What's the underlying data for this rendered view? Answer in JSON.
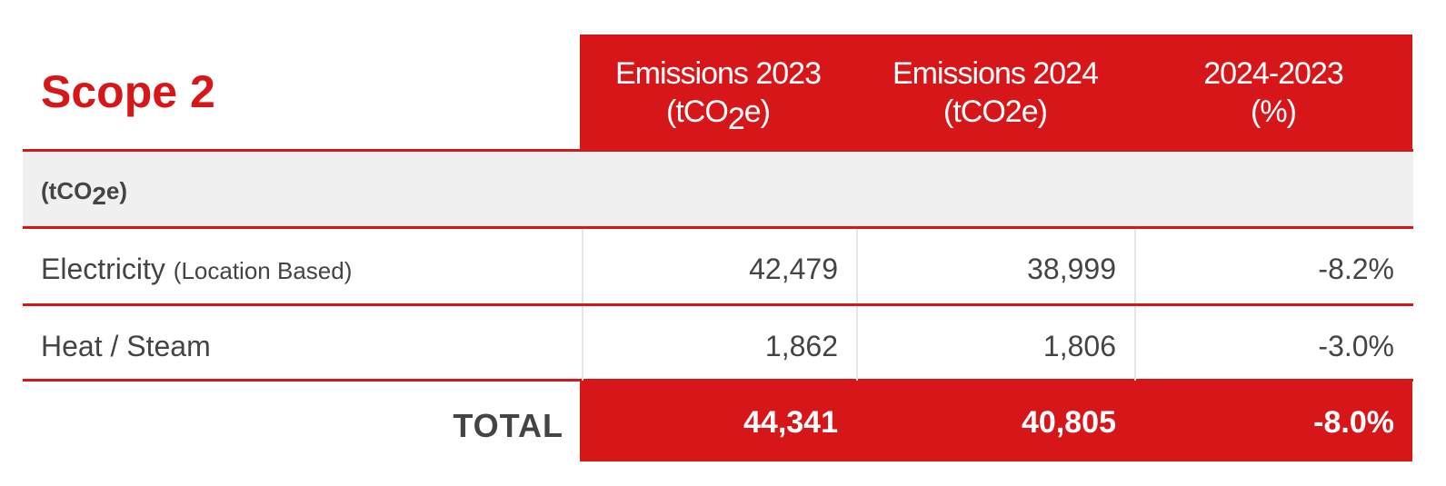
{
  "title": "Scope 2",
  "headers": [
    {
      "line1": "Emissions 2023",
      "unit": [
        "(tCO",
        "2",
        "e)"
      ]
    },
    {
      "line1": "Emissions 2024",
      "unit": [
        "(tCO2e)"
      ]
    },
    {
      "line1": "2024-2023",
      "unit": [
        "(%)"
      ]
    }
  ],
  "unit_row": [
    "(tCO",
    "2",
    "e)"
  ],
  "rows": [
    {
      "label": "Electricity",
      "note": "(Location Based)",
      "values": [
        "42,479",
        "38,999",
        "-8.2%"
      ]
    },
    {
      "label": "Heat / Steam",
      "values": [
        "1,862",
        "1,806",
        "-3.0%"
      ]
    }
  ],
  "total": {
    "label": "TOTAL",
    "values": [
      "44,341",
      "40,805",
      "-8.0%"
    ]
  }
}
